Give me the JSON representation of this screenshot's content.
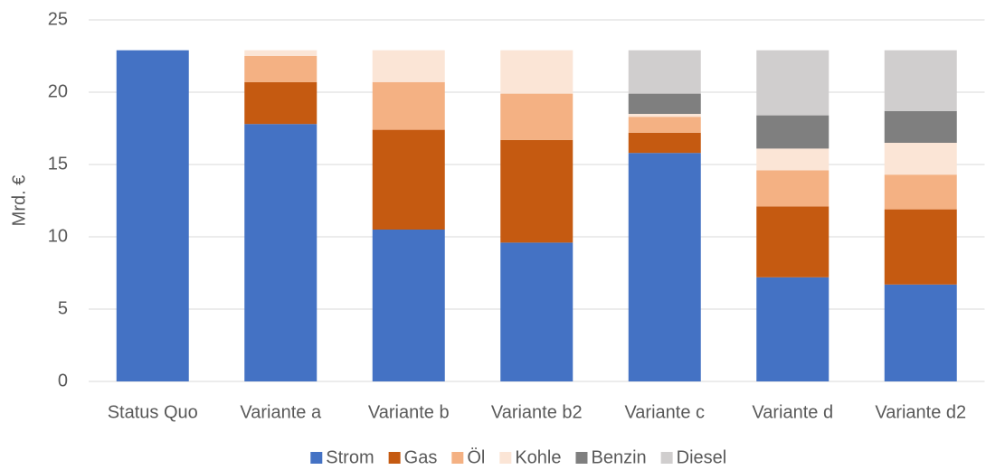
{
  "chart_data": {
    "type": "stacked_bar",
    "y_label": "Mrd. €",
    "categories": [
      "Status Quo",
      "Variante a",
      "Variante b",
      "Variante b2",
      "Variante c",
      "Variante d",
      "Variante d2"
    ],
    "series": [
      {
        "name": "Strom",
        "color": "#4472c4",
        "values": [
          22.9,
          17.8,
          10.5,
          9.6,
          15.8,
          7.2,
          6.7
        ]
      },
      {
        "name": "Gas",
        "color": "#c55a11",
        "values": [
          0,
          2.9,
          6.9,
          7.1,
          1.4,
          4.9,
          5.2
        ]
      },
      {
        "name": "Öl",
        "color": "#f4b183",
        "values": [
          0,
          1.8,
          3.3,
          3.2,
          1.1,
          2.5,
          2.4
        ]
      },
      {
        "name": "Kohle",
        "color": "#fbe5d6",
        "values": [
          0,
          0.4,
          2.2,
          3.0,
          0.2,
          1.5,
          2.2
        ]
      },
      {
        "name": "Benzin",
        "color": "#7f7f7f",
        "values": [
          0,
          0,
          0,
          0,
          1.4,
          2.3,
          2.2
        ]
      },
      {
        "name": "Diesel",
        "color": "#d0cece",
        "values": [
          0,
          0,
          0,
          0,
          3.0,
          4.5,
          4.2
        ]
      }
    ],
    "ylim": [
      0,
      25
    ],
    "yticks": [
      0,
      5,
      10,
      15,
      20,
      25
    ],
    "grid": true,
    "legend": "bottom"
  }
}
